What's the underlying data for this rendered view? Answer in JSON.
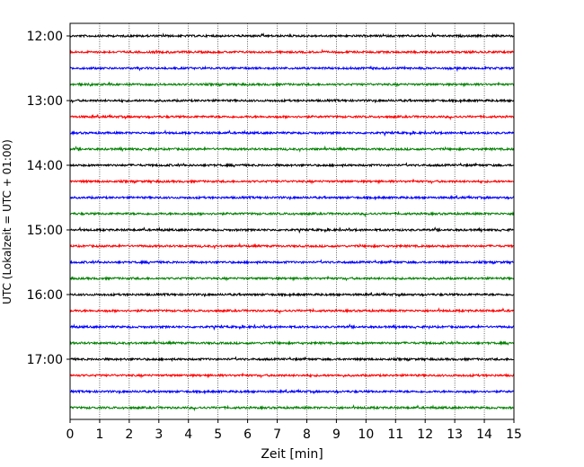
{
  "chart_data": {
    "type": "line",
    "title": "",
    "xlabel": "Zeit  [min]",
    "ylabel": "UTC (Lokalzeit = UTC + 01:00)",
    "xlim": [
      0,
      15
    ],
    "x_ticks": [
      "0",
      "1",
      "2",
      "3",
      "4",
      "5",
      "6",
      "7",
      "8",
      "9",
      "10",
      "11",
      "12",
      "13",
      "14",
      "15"
    ],
    "y_ticks": [
      "12:00",
      "13:00",
      "14:00",
      "15:00",
      "16:00",
      "17:00"
    ],
    "grid": "vertical dotted lines at each minute",
    "trace_start": "12:00",
    "trace_interval_minutes": 15,
    "trace_count": 24,
    "trace_colors": [
      "#000000",
      "#ff0000",
      "#0000ff",
      "#008000"
    ],
    "series_description": "seismogram helicorder traces, low-amplitude noise"
  }
}
